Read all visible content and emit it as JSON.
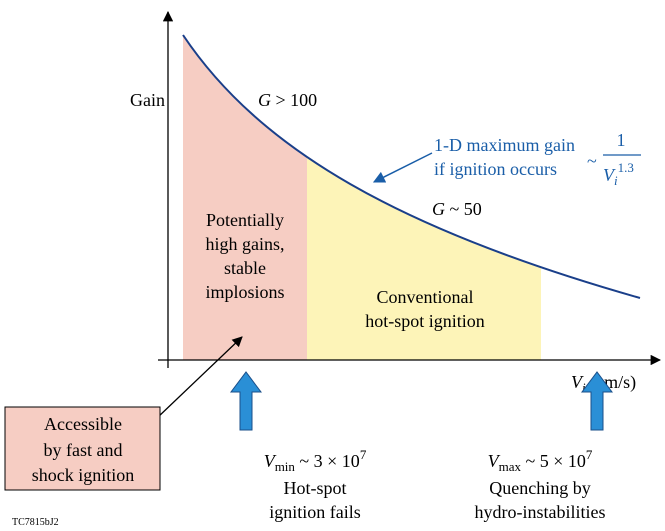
{
  "y_axis_label": "Gain",
  "x_axis_label": {
    "symbol": "V",
    "sub": "i",
    "rest": " (cm/s)"
  },
  "high_gain_label": {
    "symbol": "G",
    "rest": " > 100"
  },
  "mid_gain_label": {
    "symbol": "G",
    "rest": " ~ 50"
  },
  "curve_label": {
    "lines": [
      "1-D maximum gain",
      "if ignition occurs"
    ],
    "tilde": "~",
    "numerator": "1",
    "den_symbol": "V",
    "den_sub": "i",
    "den_exp": "1.3"
  },
  "pink_region": [
    "Potentially",
    "high gains,",
    "stable",
    "implosions"
  ],
  "yellow_region": [
    "Conventional",
    "hot-spot ignition"
  ],
  "vmin": {
    "symbol": "V",
    "sub": "min",
    "rest": " ~ 3 × 10",
    "exp": "7",
    "lines": [
      "Hot-spot",
      "ignition fails"
    ]
  },
  "vmax": {
    "symbol": "V",
    "sub": "max",
    "rest": " ~ 5 × 10",
    "exp": "7",
    "lines": [
      "Quenching by",
      "hydro-instabilities"
    ]
  },
  "box": [
    "Accessible",
    "by fast and",
    "shock ignition"
  ],
  "figure_id": "TC7815bJ2"
}
